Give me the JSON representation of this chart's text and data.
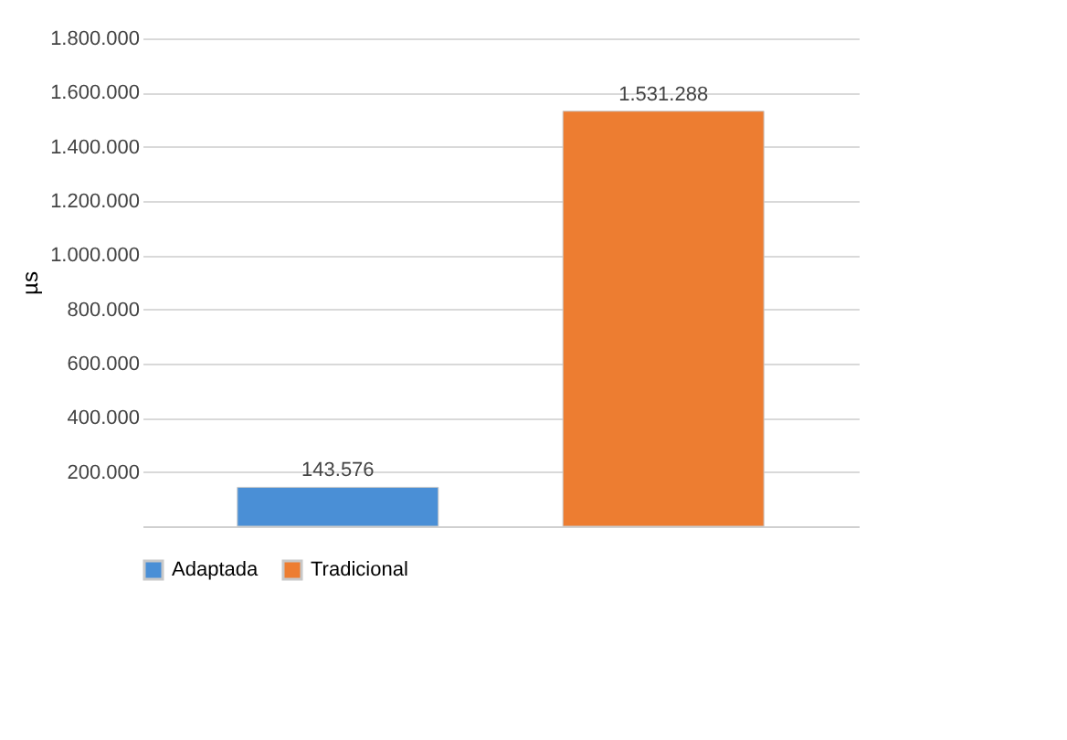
{
  "chart_data": {
    "type": "bar",
    "ylabel": "µs",
    "categories": [
      null
    ],
    "series": [
      {
        "name": "Adaptada",
        "color": "#4a8fd6",
        "values": [
          143576
        ],
        "value_labels": [
          "143.576"
        ]
      },
      {
        "name": "Tradicional",
        "color": "#ed7d31",
        "values": [
          1531288
        ],
        "value_labels": [
          "1.531.288"
        ]
      }
    ],
    "ylim": [
      0,
      1800000
    ],
    "yticks": [
      {
        "value": 200000,
        "label": "200.000"
      },
      {
        "value": 400000,
        "label": "400.000"
      },
      {
        "value": 600000,
        "label": "600.000"
      },
      {
        "value": 800000,
        "label": "800.000"
      },
      {
        "value": 1000000,
        "label": "1.000.000"
      },
      {
        "value": 1200000,
        "label": "1.200.000"
      },
      {
        "value": 1400000,
        "label": "1.400.000"
      },
      {
        "value": 1600000,
        "label": "1.600.000"
      },
      {
        "value": 1800000,
        "label": "1.800.000"
      }
    ],
    "grid": "y",
    "legend": "bottom",
    "tick_labels": "y"
  }
}
